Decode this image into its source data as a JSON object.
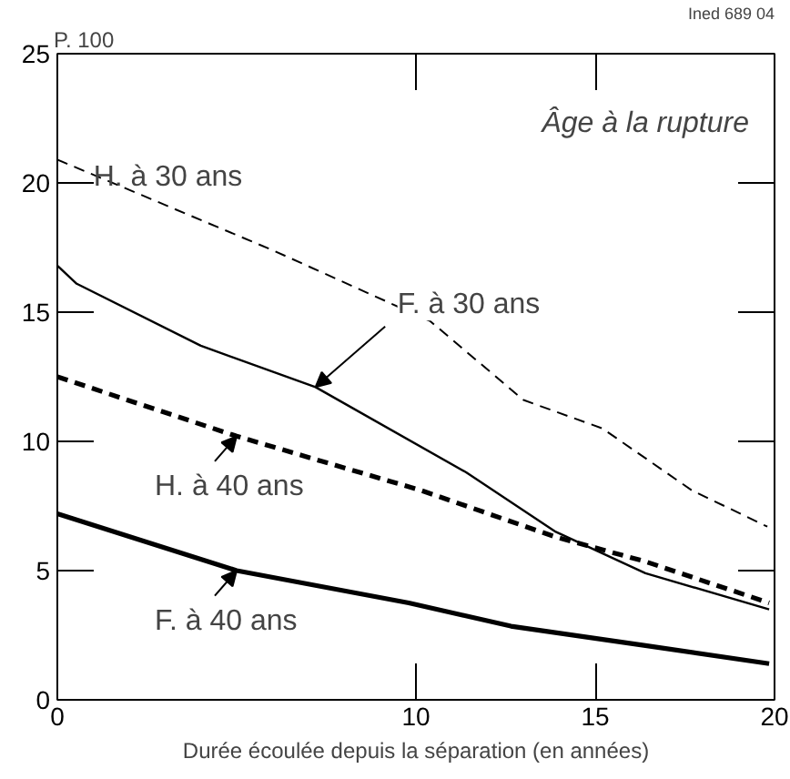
{
  "chart_data": {
    "type": "line",
    "title": "Âge à la rupture",
    "xlabel": "Durée écoulée depuis la séparation (en années)",
    "ylabel": "P. 100",
    "xlim": [
      0,
      20
    ],
    "xticks": [
      0,
      10,
      15,
      20
    ],
    "ylim": [
      0,
      25
    ],
    "yticks": [
      0,
      5,
      10,
      15,
      20,
      25
    ],
    "grid": false,
    "marker": "none",
    "series": [
      {
        "color": "#000000",
        "line_style": "dashed",
        "x": [
          0,
          6.0,
          10.4,
          13.0,
          15.2,
          17.7,
          19.8
        ],
        "values": [
          20.9,
          17.4,
          14.65,
          11.6,
          10.5,
          8.1,
          6.7
        ]
      },
      {
        "color": "#000000",
        "line_style": "solid",
        "x": [
          0,
          0.54,
          4.0,
          7.2,
          11.4,
          13.9,
          16.4,
          19.85
        ],
        "values": [
          16.8,
          16.1,
          13.7,
          12.1,
          8.8,
          6.5,
          4.9,
          3.5
        ]
      },
      {
        "color": "#000000",
        "line_style": "dashed",
        "x": [
          0,
          5.0,
          10.15,
          13.9,
          16.4,
          19.85
        ],
        "values": [
          12.5,
          10.2,
          8.1,
          6.3,
          5.35,
          3.75
        ]
      },
      {
        "color": "#000000",
        "line_style": "solid",
        "x": [
          0,
          5.0,
          9.8,
          12.65,
          16.4,
          19.85
        ],
        "values": [
          7.2,
          5.0,
          3.75,
          2.85,
          2.1,
          1.4
        ]
      }
    ],
    "annotations": [
      "Ined 689 04",
      {
        "text": "H. à 30 ans",
        "x": 0.6,
        "y": 20.5
      },
      {
        "text": "F. à 30 ans",
        "x": 7.2,
        "y": 12.1
      },
      {
        "text": "H. à 40 ans",
        "x": 5.0,
        "y": 10.2
      },
      {
        "text": "F. à 40 ans",
        "x": 5.0,
        "y": 5.0
      }
    ]
  }
}
